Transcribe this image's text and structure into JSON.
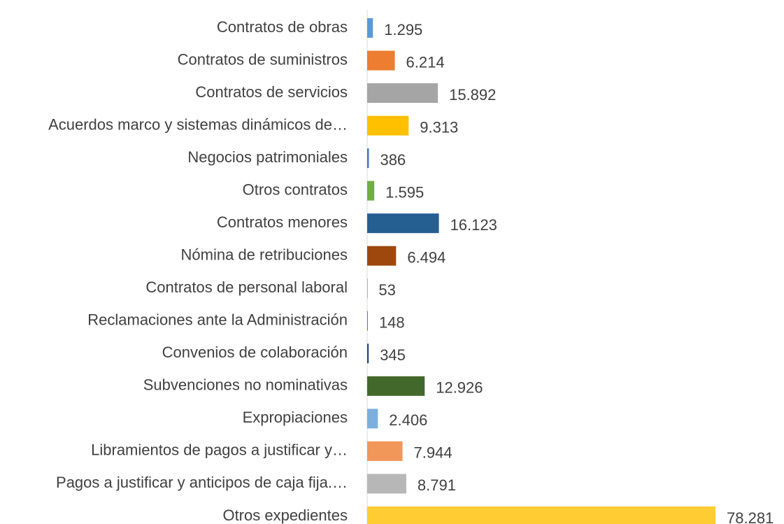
{
  "chart_data": {
    "type": "bar",
    "orientation": "horizontal",
    "categories": [
      "Contratos de obras",
      "Contratos de suministros",
      "Contratos de servicios",
      "Acuerdos marco y sistemas dinámicos de…",
      "Negocios patrimoniales",
      "Otros contratos",
      "Contratos menores",
      "Nómina de retribuciones",
      "Contratos de personal laboral",
      "Reclamaciones ante la Administración",
      "Convenios de colaboración",
      "Subvenciones no nominativas",
      "Expropiaciones",
      "Libramientos de pagos a justificar y…",
      "Pagos a justificar y anticipos de caja fija.…",
      "Otros expedientes"
    ],
    "values": [
      1295,
      6214,
      15892,
      9313,
      386,
      1595,
      16123,
      6494,
      53,
      148,
      345,
      12926,
      2406,
      7944,
      8791,
      78281
    ],
    "value_labels": [
      "1.295",
      "6.214",
      "15.892",
      "9.313",
      "386",
      "1.595",
      "16.123",
      "6.494",
      "53",
      "148",
      "345",
      "12.926",
      "2.406",
      "7.944",
      "8.791",
      "78.281"
    ],
    "colors": [
      "#5b9bd5",
      "#ed7d31",
      "#a5a5a5",
      "#ffc000",
      "#4472c4",
      "#70ad47",
      "#255e91",
      "#9e480e",
      "#636363",
      "#997300",
      "#264478",
      "#43682b",
      "#7cafdd",
      "#f1975a",
      "#b7b7b7",
      "#ffcd33"
    ]
  }
}
